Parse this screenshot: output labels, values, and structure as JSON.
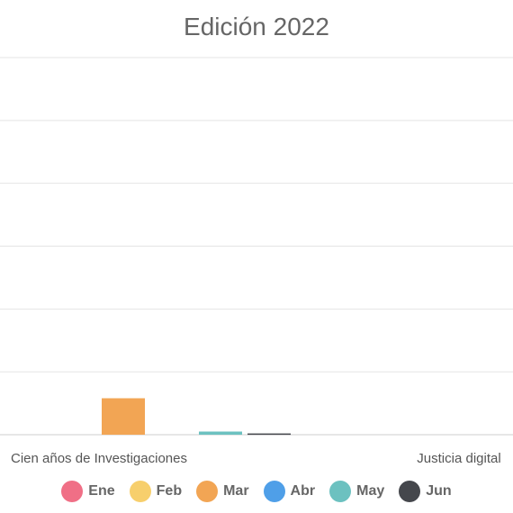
{
  "chart_data": {
    "type": "bar",
    "title": "Edición 2022",
    "categories": [
      "Cien años de Investigaciones",
      "Justicia digital"
    ],
    "series": [
      {
        "name": "Ene",
        "color": "#f06f86",
        "values": [
          0,
          0
        ]
      },
      {
        "name": "Feb",
        "color": "#f7cf6c",
        "values": [
          0,
          0
        ]
      },
      {
        "name": "Mar",
        "color": "#f2a554",
        "values": [
          58,
          0
        ]
      },
      {
        "name": "Abr",
        "color": "#4f9fe8",
        "values": [
          0,
          0
        ]
      },
      {
        "name": "May",
        "color": "#6cc1c0",
        "values": [
          5,
          0
        ]
      },
      {
        "name": "Jun",
        "color": "#45474c",
        "values": [
          2,
          0
        ]
      }
    ],
    "ylim": [
      0,
      600
    ],
    "grid": true,
    "legend_position": "bottom"
  }
}
